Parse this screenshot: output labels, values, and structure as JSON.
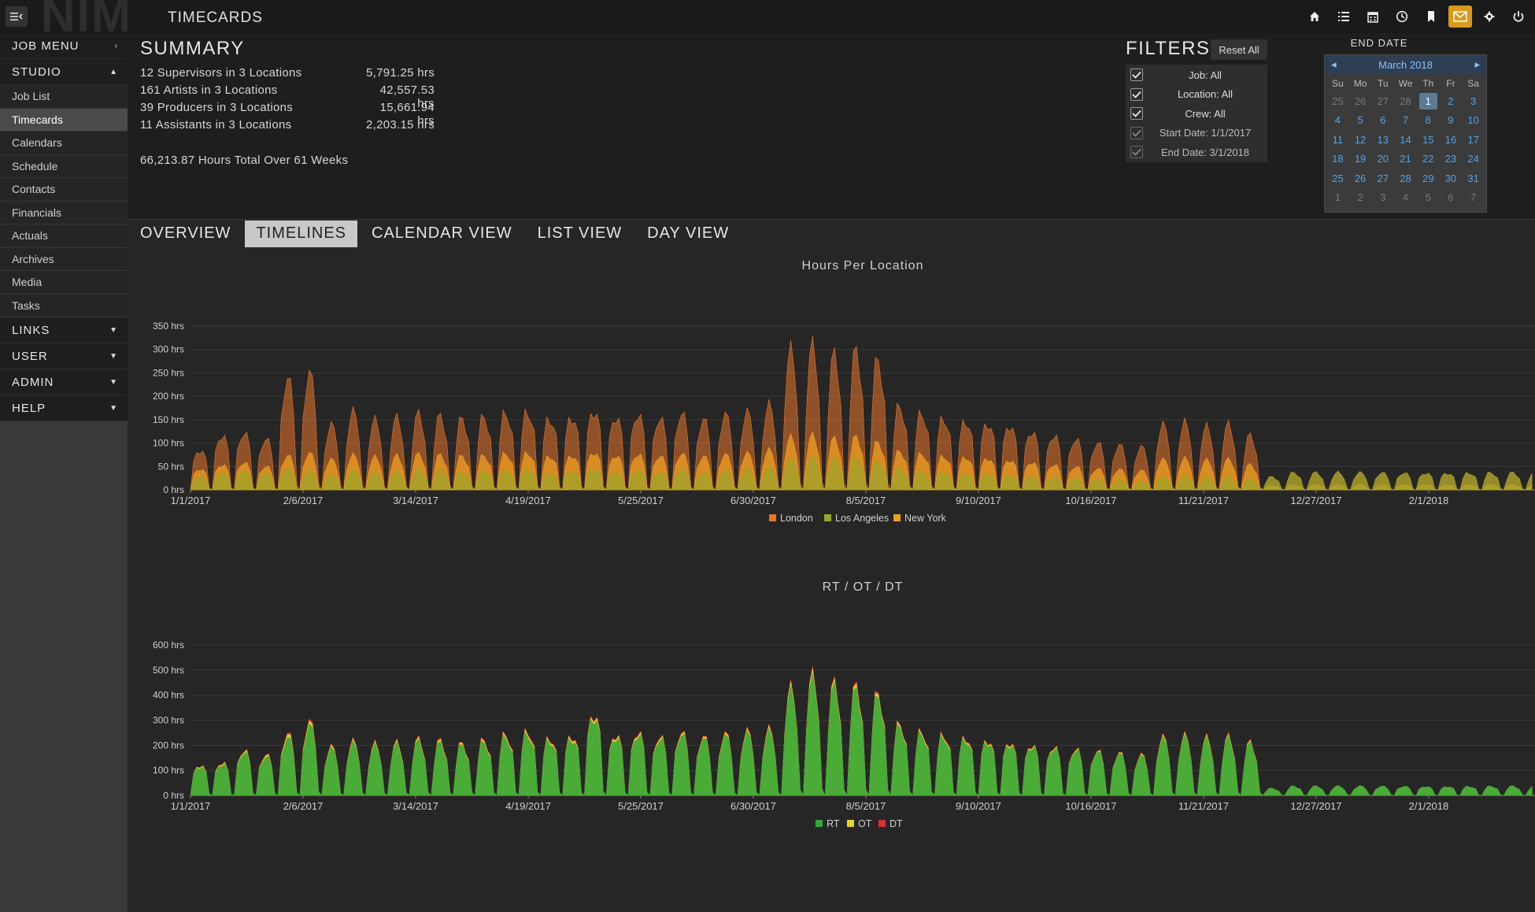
{
  "app": {
    "logo": "NIM",
    "title": "TIMECARDS"
  },
  "top_icons": [
    {
      "name": "home-icon",
      "active": false
    },
    {
      "name": "list-icon",
      "active": false
    },
    {
      "name": "calendar-icon",
      "active": false
    },
    {
      "name": "clock-icon",
      "active": false
    },
    {
      "name": "bookmark-icon",
      "active": false
    },
    {
      "name": "mail-icon",
      "active": true
    },
    {
      "name": "gear-icon",
      "active": false
    },
    {
      "name": "power-icon",
      "active": false
    }
  ],
  "sidebar": {
    "job_menu": "JOB MENU",
    "studio": "STUDIO",
    "items": [
      {
        "label": "Job List",
        "active": false
      },
      {
        "label": "Timecards",
        "active": true
      },
      {
        "label": "Calendars",
        "active": false
      },
      {
        "label": "Schedule",
        "active": false
      },
      {
        "label": "Contacts",
        "active": false
      },
      {
        "label": "Financials",
        "active": false
      },
      {
        "label": "Actuals",
        "active": false
      },
      {
        "label": "Archives",
        "active": false
      },
      {
        "label": "Media",
        "active": false
      },
      {
        "label": "Tasks",
        "active": false
      }
    ],
    "sections": [
      "LINKS",
      "USER",
      "ADMIN",
      "HELP"
    ]
  },
  "summary": {
    "title": "SUMMARY",
    "rows": [
      {
        "label": "12 Supervisors in 3 Locations",
        "hours": "5,791.25 hrs"
      },
      {
        "label": "161 Artists in 3 Locations",
        "hours": "42,557.53 hrs"
      },
      {
        "label": "39 Producers in 3 Locations",
        "hours": "15,661.94 hrs"
      },
      {
        "label": "11 Assistants in 3 Locations",
        "hours": "2,203.15 hrs"
      }
    ],
    "total": "66,213.87 Hours Total Over 61 Weeks"
  },
  "filters": {
    "title": "FILTERS",
    "reset_label": "Reset All",
    "rows": [
      {
        "label": "Job: All",
        "checked": true,
        "dim": false
      },
      {
        "label": "Location: All",
        "checked": true,
        "dim": false
      },
      {
        "label": "Crew: All",
        "checked": true,
        "dim": false
      },
      {
        "label": "Start Date: 1/1/2017",
        "checked": true,
        "dim": true
      },
      {
        "label": "End Date: 3/1/2018",
        "checked": true,
        "dim": true
      }
    ]
  },
  "end_date": {
    "title": "END DATE",
    "month": "March 2018",
    "prev": "◂",
    "next": "▸",
    "dow": [
      "Su",
      "Mo",
      "Tu",
      "We",
      "Th",
      "Fr",
      "Sa"
    ],
    "weeks": [
      [
        {
          "d": "25",
          "o": true
        },
        {
          "d": "26",
          "o": true
        },
        {
          "d": "27",
          "o": true
        },
        {
          "d": "28",
          "o": true
        },
        {
          "d": "1",
          "s": true
        },
        {
          "d": "2"
        },
        {
          "d": "3"
        }
      ],
      [
        {
          "d": "4"
        },
        {
          "d": "5"
        },
        {
          "d": "6"
        },
        {
          "d": "7"
        },
        {
          "d": "8"
        },
        {
          "d": "9"
        },
        {
          "d": "10"
        }
      ],
      [
        {
          "d": "11"
        },
        {
          "d": "12"
        },
        {
          "d": "13"
        },
        {
          "d": "14"
        },
        {
          "d": "15"
        },
        {
          "d": "16"
        },
        {
          "d": "17"
        }
      ],
      [
        {
          "d": "18"
        },
        {
          "d": "19"
        },
        {
          "d": "20"
        },
        {
          "d": "21"
        },
        {
          "d": "22"
        },
        {
          "d": "23"
        },
        {
          "d": "24"
        }
      ],
      [
        {
          "d": "25"
        },
        {
          "d": "26"
        },
        {
          "d": "27"
        },
        {
          "d": "28"
        },
        {
          "d": "29"
        },
        {
          "d": "30"
        },
        {
          "d": "31"
        }
      ],
      [
        {
          "d": "1",
          "o": true
        },
        {
          "d": "2",
          "o": true
        },
        {
          "d": "3",
          "o": true
        },
        {
          "d": "4",
          "o": true
        },
        {
          "d": "5",
          "o": true
        },
        {
          "d": "6",
          "o": true
        },
        {
          "d": "7",
          "o": true
        }
      ]
    ]
  },
  "tabs": [
    {
      "label": "OVERVIEW",
      "active": false
    },
    {
      "label": "TIMELINES",
      "active": true
    },
    {
      "label": "CALENDAR VIEW",
      "active": false
    },
    {
      "label": "LIST VIEW",
      "active": false
    },
    {
      "label": "DAY VIEW",
      "active": false
    }
  ],
  "colors": {
    "accent": "#d99a1c",
    "london": "#e8742a",
    "los_angeles": "#9aa528",
    "new_york": "#f0a020",
    "rt": "#2fa83a",
    "ot": "#e8d12c",
    "dt": "#d83030"
  },
  "chart_data": [
    {
      "type": "area",
      "title": "Hours Per Location",
      "ylim": [
        0,
        350
      ],
      "yticks": [
        "0 hrs",
        "50 hrs",
        "100 hrs",
        "150 hrs",
        "200 hrs",
        "250 hrs",
        "300 hrs",
        "350 hrs"
      ],
      "xticks": [
        "1/1/2017",
        "2/6/2017",
        "3/14/2017",
        "4/19/2017",
        "5/25/2017",
        "6/30/2017",
        "8/5/2017",
        "9/10/2017",
        "10/16/2017",
        "11/21/2017",
        "12/27/2017",
        "2/1/2018"
      ],
      "legend": [
        "London",
        "Los Angeles",
        "New York"
      ],
      "series_colors": [
        "#e8742a",
        "#9aa528",
        "#f0a020"
      ],
      "weekly_peaks_total": [
        95,
        130,
        135,
        120,
        260,
        270,
        150,
        180,
        160,
        165,
        175,
        170,
        165,
        170,
        180,
        185,
        170,
        175,
        190,
        175,
        180,
        170,
        180,
        165,
        175,
        180,
        195,
        320,
        330,
        310,
        320,
        300,
        195,
        180,
        170,
        165,
        160,
        155,
        140,
        130,
        120,
        110,
        105,
        100,
        150,
        155,
        145,
        150,
        125,
        30,
        40
      ],
      "weekly_peaks_la": [
        30,
        40,
        45,
        40,
        50,
        45,
        35,
        45,
        40,
        42,
        48,
        45,
        42,
        44,
        46,
        48,
        40,
        45,
        50,
        44,
        46,
        42,
        48,
        40,
        45,
        48,
        52,
        70,
        75,
        72,
        74,
        65,
        50,
        45,
        42,
        40,
        38,
        36,
        32,
        30,
        28,
        25,
        22,
        20,
        30,
        32,
        30,
        30,
        25,
        30,
        40
      ],
      "weekly_peaks_ny": [
        50,
        60,
        65,
        55,
        80,
        85,
        70,
        80,
        75,
        78,
        82,
        80,
        78,
        80,
        85,
        88,
        80,
        82,
        90,
        82,
        85,
        80,
        85,
        78,
        82,
        85,
        92,
        120,
        125,
        118,
        122,
        110,
        90,
        85,
        80,
        78,
        76,
        72,
        66,
        60,
        55,
        50,
        48,
        45,
        70,
        72,
        68,
        70,
        58,
        10,
        12
      ]
    },
    {
      "type": "area",
      "title": "RT / OT / DT",
      "ylim": [
        0,
        600
      ],
      "yticks": [
        "0 hrs",
        "100 hrs",
        "200 hrs",
        "300 hrs",
        "400 hrs",
        "500 hrs",
        "600 hrs"
      ],
      "xticks": [
        "1/1/2017",
        "2/6/2017",
        "3/14/2017",
        "4/19/2017",
        "5/25/2017",
        "6/30/2017",
        "8/5/2017",
        "9/10/2017",
        "10/16/2017",
        "11/21/2017",
        "12/27/2017",
        "2/1/2018"
      ],
      "legend": [
        "RT",
        "OT",
        "DT"
      ],
      "series_colors": [
        "#2fa83a",
        "#e8d12c",
        "#d83030"
      ],
      "weekly_peaks_rt": [
        130,
        140,
        190,
        170,
        250,
        300,
        200,
        220,
        210,
        215,
        230,
        225,
        215,
        230,
        255,
        270,
        245,
        255,
        350,
        260,
        270,
        250,
        265,
        245,
        255,
        265,
        270,
        440,
        490,
        460,
        450,
        420,
        300,
        270,
        260,
        250,
        240,
        230,
        220,
        210,
        200,
        190,
        180,
        170,
        240,
        245,
        235,
        240,
        220,
        30,
        40
      ],
      "weekly_peaks_ot": [
        5,
        6,
        8,
        8,
        15,
        15,
        8,
        9,
        8,
        8,
        9,
        9,
        8,
        9,
        10,
        11,
        9,
        10,
        12,
        10,
        10,
        9,
        10,
        9,
        10,
        10,
        11,
        15,
        18,
        16,
        16,
        14,
        10,
        9,
        8,
        8,
        7,
        7,
        6,
        6,
        5,
        5,
        5,
        5,
        8,
        8,
        8,
        8,
        6,
        0,
        0
      ],
      "weekly_peaks_dt": [
        2,
        3,
        4,
        4,
        8,
        8,
        4,
        5,
        4,
        4,
        5,
        5,
        4,
        5,
        5,
        6,
        5,
        5,
        6,
        5,
        5,
        5,
        5,
        5,
        5,
        5,
        6,
        8,
        10,
        9,
        9,
        8,
        5,
        5,
        4,
        4,
        4,
        4,
        3,
        3,
        3,
        3,
        3,
        3,
        5,
        5,
        5,
        5,
        4,
        0,
        0
      ]
    }
  ]
}
